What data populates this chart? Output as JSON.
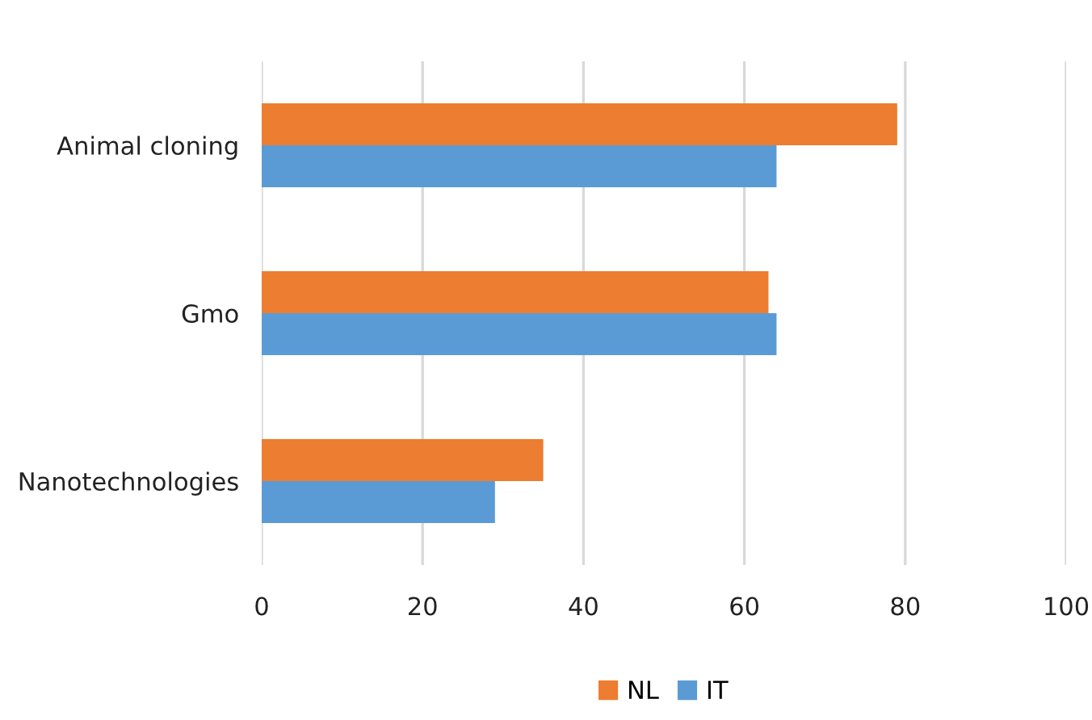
{
  "chart_data": {
    "type": "bar",
    "orientation": "horizontal",
    "categories": [
      "Animal cloning",
      "Gmo",
      "Nanotechnologies"
    ],
    "series": [
      {
        "name": "NL",
        "color": "#ed7d31",
        "values": [
          79,
          63,
          35
        ]
      },
      {
        "name": "IT",
        "color": "#5b9bd5",
        "values": [
          64,
          64,
          29
        ]
      }
    ],
    "xlim": [
      0,
      100
    ],
    "xticks": [
      0,
      20,
      40,
      60,
      80,
      100
    ],
    "grid": "x",
    "legend": "bottom"
  }
}
